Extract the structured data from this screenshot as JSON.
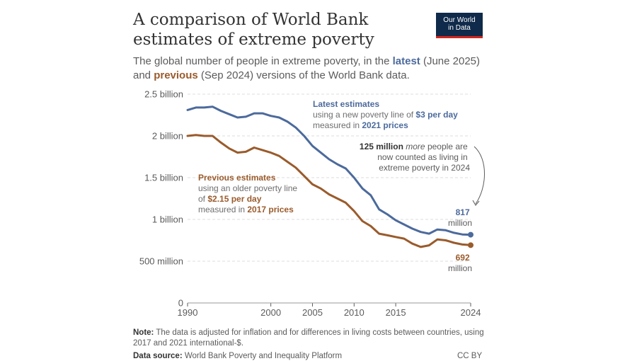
{
  "header": {
    "title": "A comparison of World Bank estimates of extreme poverty",
    "subtitle_parts": [
      "The global number of people in extreme poverty, in the ",
      "latest",
      " (June 2025) and ",
      "previous",
      " (Sep 2024) versions of the World Bank data."
    ],
    "logo_line1": "Our World",
    "logo_line2": "in Data"
  },
  "footer": {
    "note_label": "Note:",
    "note_text": " The data is adjusted for inflation and for differences in living costs between countries, using 2017 and 2021 international-$.",
    "source_label": "Data source:",
    "source_text": " World Bank Poverty and Inequality Platform",
    "license": "CC BY"
  },
  "annotations": {
    "latest_title": "Latest estimates",
    "latest_line2_prefix": "using a new poverty line of ",
    "latest_line2_bold": "$3 per day",
    "latest_line3_prefix": "measured in ",
    "latest_line3_bold": "2021 prices",
    "prev_title": "Previous estimates",
    "prev_line2": "using an older poverty line",
    "prev_line3_prefix": "of ",
    "prev_line3_bold": "$2.15 per day",
    "prev_line4_prefix": "measured in ",
    "prev_line4_bold": "2017 prices",
    "diff_line1_bold": "125 million",
    "diff_line1_italic": "more",
    "diff_line1_rest": " people are",
    "diff_line2": "now counted as living in",
    "diff_line3": "extreme poverty in 2024",
    "latest_end_value": "817",
    "latest_end_unit": "million",
    "prev_end_value": "692",
    "prev_end_unit": "million"
  },
  "colors": {
    "latest": "#4c6a9c",
    "previous": "#9a5b2c",
    "grid": "#dddddd",
    "axis": "#5b5b5b"
  },
  "chart_data": {
    "type": "line",
    "xlim": [
      1990,
      2024
    ],
    "ylim": [
      0,
      2500000000
    ],
    "x_ticks": [
      1990,
      2000,
      2005,
      2010,
      2015,
      2024
    ],
    "y_ticks": [
      0,
      500000000,
      1000000000,
      1500000000,
      2000000000,
      2500000000
    ],
    "y_tick_labels": [
      "0",
      "500 million",
      "1 billion",
      "1.5 billion",
      "2 billion",
      "2.5 billion"
    ],
    "grid": true,
    "series": [
      {
        "name": "Latest estimates",
        "x": [
          1990,
          1991,
          1992,
          1993,
          1994,
          1995,
          1996,
          1997,
          1998,
          1999,
          2000,
          2001,
          2002,
          2003,
          2004,
          2005,
          2006,
          2007,
          2008,
          2009,
          2010,
          2011,
          2012,
          2013,
          2014,
          2015,
          2016,
          2017,
          2018,
          2019,
          2020,
          2021,
          2022,
          2023,
          2024
        ],
        "values": [
          2310000000,
          2340000000,
          2340000000,
          2350000000,
          2300000000,
          2260000000,
          2220000000,
          2230000000,
          2270000000,
          2270000000,
          2240000000,
          2220000000,
          2170000000,
          2100000000,
          2000000000,
          1880000000,
          1800000000,
          1720000000,
          1660000000,
          1610000000,
          1500000000,
          1370000000,
          1290000000,
          1120000000,
          1060000000,
          990000000,
          940000000,
          890000000,
          850000000,
          830000000,
          880000000,
          870000000,
          840000000,
          820000000,
          817000000
        ]
      },
      {
        "name": "Previous estimates",
        "x": [
          1990,
          1991,
          1992,
          1993,
          1994,
          1995,
          1996,
          1997,
          1998,
          1999,
          2000,
          2001,
          2002,
          2003,
          2004,
          2005,
          2006,
          2007,
          2008,
          2009,
          2010,
          2011,
          2012,
          2013,
          2014,
          2015,
          2016,
          2017,
          2018,
          2019,
          2020,
          2021,
          2022,
          2023,
          2024
        ],
        "values": [
          2000000000,
          2010000000,
          2000000000,
          2000000000,
          1920000000,
          1850000000,
          1800000000,
          1810000000,
          1860000000,
          1830000000,
          1800000000,
          1760000000,
          1690000000,
          1620000000,
          1520000000,
          1420000000,
          1370000000,
          1300000000,
          1250000000,
          1200000000,
          1100000000,
          980000000,
          920000000,
          830000000,
          810000000,
          790000000,
          770000000,
          710000000,
          670000000,
          690000000,
          760000000,
          750000000,
          720000000,
          700000000,
          692000000
        ]
      }
    ]
  }
}
